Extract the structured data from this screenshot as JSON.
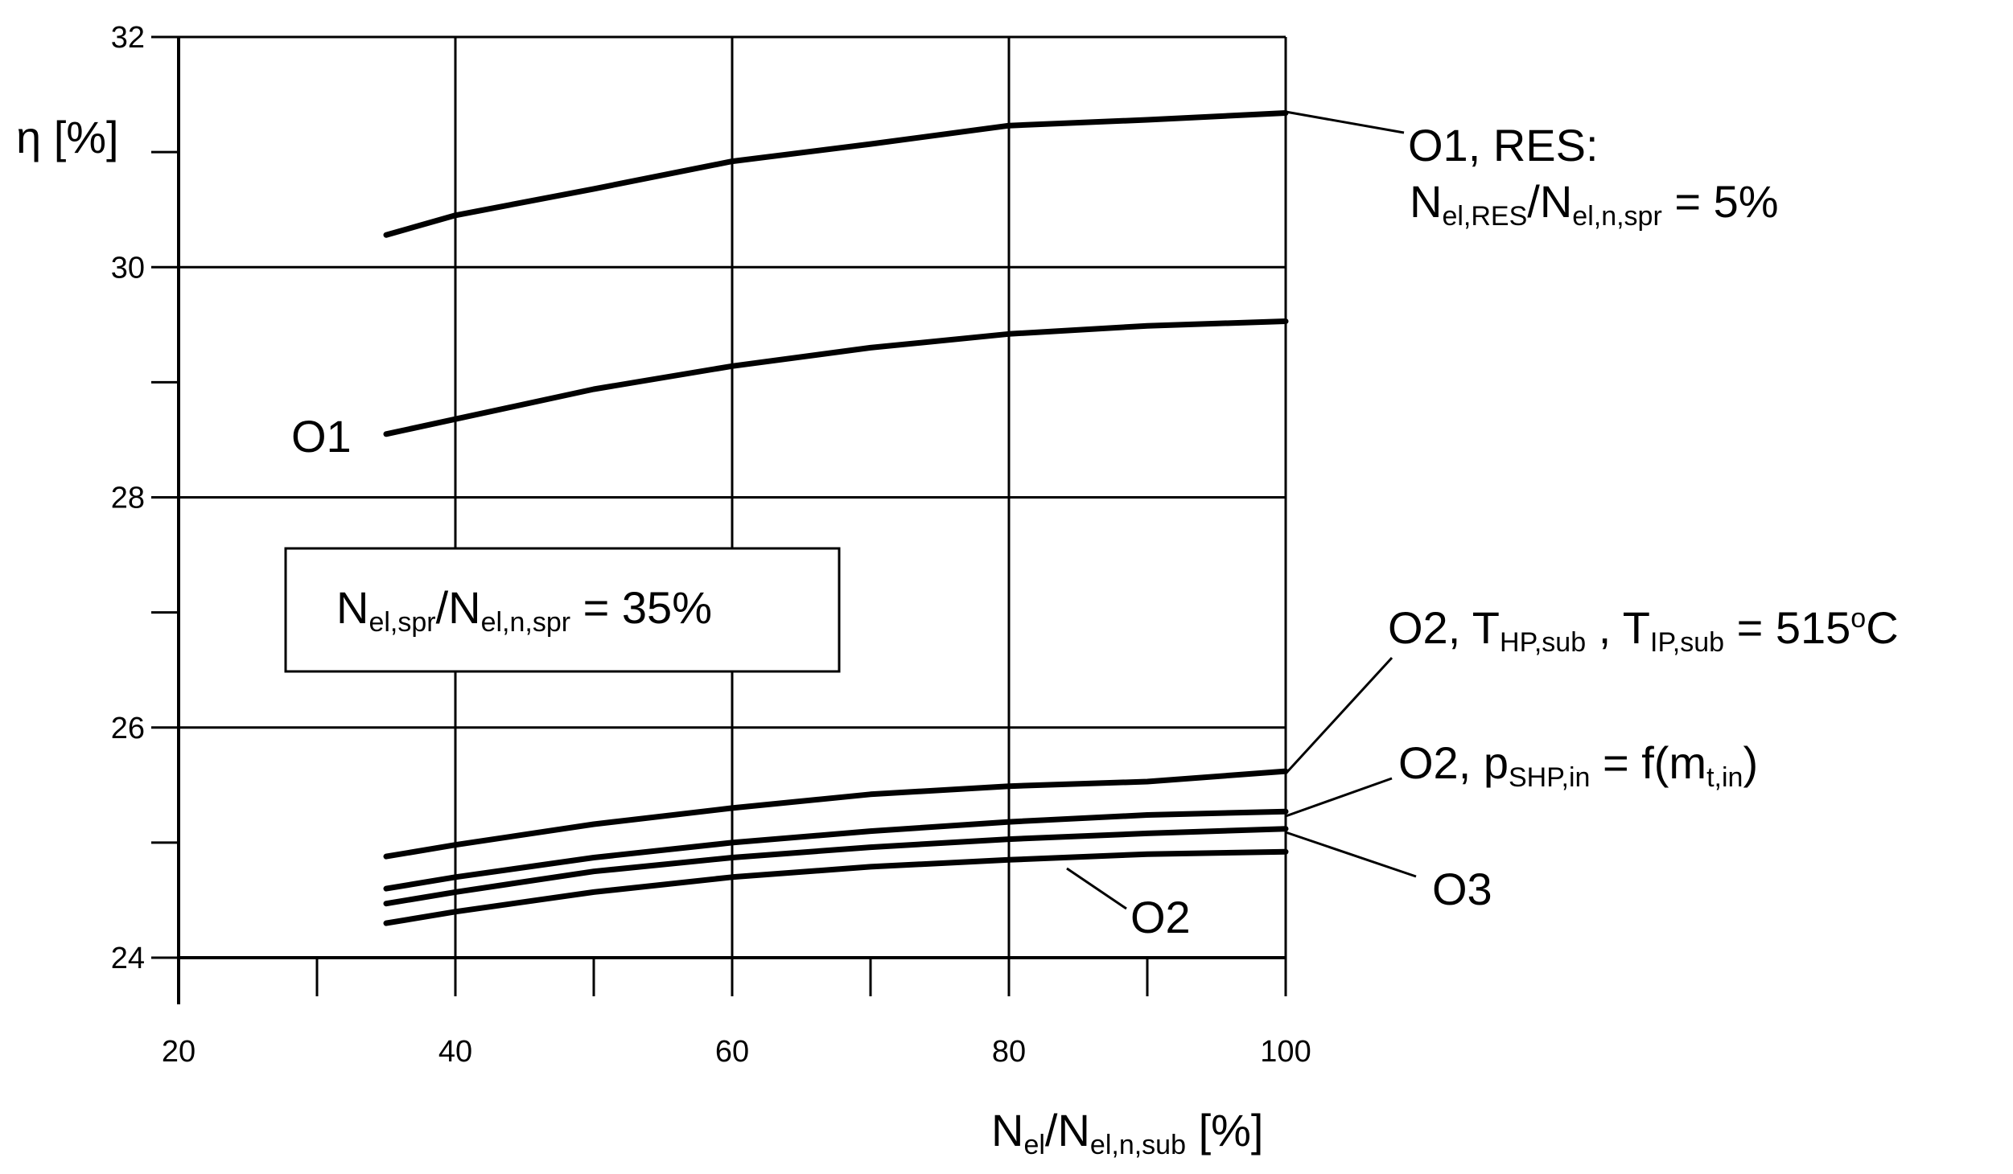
{
  "chart_data": {
    "type": "line",
    "xlabel": {
      "main": "N",
      "sub1": "el",
      "mid": "/N",
      "sub2": "el,n,sub",
      "tail": " [%]"
    },
    "ylabel": "η [%]",
    "xlim": [
      20,
      100
    ],
    "ylim": [
      24,
      32
    ],
    "x_ticks": [
      20,
      40,
      60,
      80,
      100
    ],
    "y_ticks": [
      24,
      26,
      28,
      30,
      32
    ],
    "grid": true,
    "series": [
      {
        "name": "O1, RES",
        "x": [
          35,
          40,
          50,
          60,
          70,
          80,
          90,
          100
        ],
        "y": [
          30.28,
          30.45,
          30.68,
          30.92,
          31.07,
          31.23,
          31.28,
          31.34
        ]
      },
      {
        "name": "O1",
        "x": [
          35,
          40,
          50,
          60,
          70,
          80,
          90,
          100
        ],
        "y": [
          28.55,
          28.68,
          28.94,
          29.14,
          29.3,
          29.42,
          29.49,
          29.53
        ]
      },
      {
        "name": "O2, T_HP,sub, T_IP,sub = 515oC",
        "x": [
          35,
          40,
          50,
          60,
          70,
          80,
          90,
          100
        ],
        "y": [
          24.88,
          24.98,
          25.16,
          25.3,
          25.42,
          25.49,
          25.53,
          25.62
        ]
      },
      {
        "name": "O2, p_SHP,in = f(m_t,in)",
        "x": [
          35,
          40,
          50,
          60,
          70,
          80,
          90,
          100
        ],
        "y": [
          24.6,
          24.7,
          24.87,
          25.0,
          25.1,
          25.18,
          25.24,
          25.27
        ]
      },
      {
        "name": "O3",
        "x": [
          35,
          40,
          50,
          60,
          70,
          80,
          90,
          100
        ],
        "y": [
          24.47,
          24.57,
          24.75,
          24.87,
          24.96,
          25.03,
          25.08,
          25.12
        ]
      },
      {
        "name": "O2",
        "x": [
          35,
          40,
          50,
          60,
          70,
          80,
          90,
          100
        ],
        "y": [
          24.3,
          24.4,
          24.57,
          24.7,
          24.79,
          24.85,
          24.9,
          24.92
        ]
      }
    ],
    "annotations": {
      "res_line1": "O1, RES:",
      "res_line2": {
        "a": "N",
        "a_sub": "el,RES",
        "b": "/N",
        "b_sub": "el,n,spr",
        "c": " = 5%"
      },
      "o1": "O1",
      "o2_temp": {
        "a": "O2, T",
        "a_sub": "HP,sub",
        "b": " , T",
        "b_sub": "IP,sub",
        "c": " =  515",
        "c_sup": "o",
        "d": "C"
      },
      "o2_pressure": {
        "a": "O2, p",
        "a_sub": "SHP,in",
        "b": " = f(m",
        "b_sub": "t,in",
        "c": ")"
      },
      "o3": "O3",
      "o2": "O2",
      "box": {
        "a": "N",
        "a_sub": "el,spr",
        "b": "/N",
        "b_sub": "el,n,spr",
        "c": " = 35%"
      }
    }
  }
}
